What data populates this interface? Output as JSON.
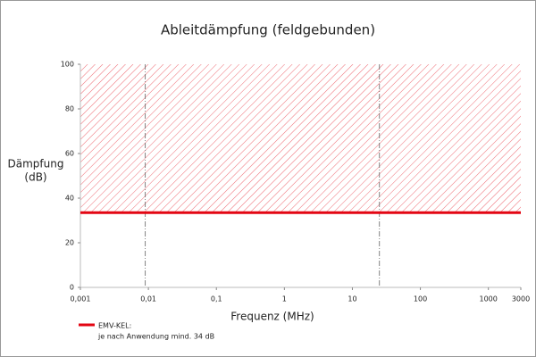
{
  "chart_data": {
    "type": "line",
    "title": "Ableitdämpfung (feldgebunden)",
    "ylabel": [
      "Dämpfung",
      "(dB)"
    ],
    "xlabel": "Frequenz (MHz)",
    "xscale": "log",
    "xlim": [
      0.001,
      3000
    ],
    "ylim": [
      0,
      100
    ],
    "xticks": [
      {
        "value": 0.001,
        "label": "0,001"
      },
      {
        "value": 0.01,
        "label": "0,01"
      },
      {
        "value": 0.1,
        "label": "0,1"
      },
      1,
      10,
      100,
      1000,
      3000
    ],
    "yticks": [
      0,
      20,
      40,
      60,
      80,
      100
    ],
    "series": [
      {
        "name": "EMV-KEL:",
        "note": "je nach Anwendung mind. 34 dB",
        "color": "#e30613",
        "x": [
          0.001,
          3000
        ],
        "values": [
          33.5,
          33.5
        ]
      }
    ],
    "hatch": {
      "from": 33.5,
      "to": 100,
      "color": "#e30613"
    },
    "vlines": [
      0.009,
      25
    ]
  }
}
